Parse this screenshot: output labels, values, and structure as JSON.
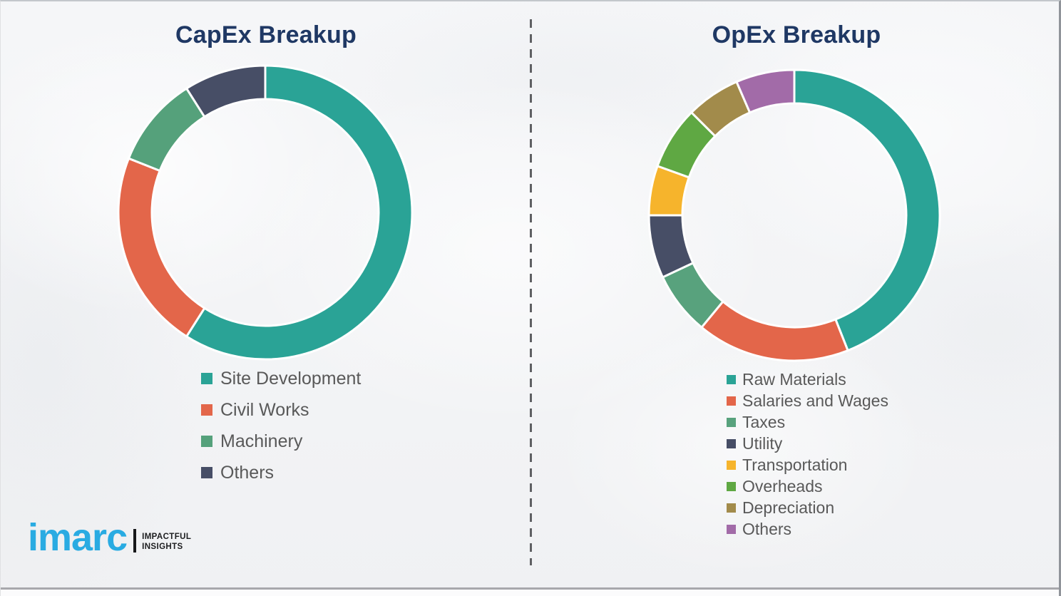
{
  "page": {
    "background_color": "#f4f5f7",
    "divider_color": "#5f6063",
    "title_color": "#1F3864",
    "legend_text_color": "#595959"
  },
  "branding": {
    "logo_text": "imarc",
    "logo_color": "#29ABE2",
    "tagline_line1": "IMPACTFUL",
    "tagline_line2": "INSIGHTS"
  },
  "chart_data": [
    {
      "type": "pie",
      "subtype": "donut",
      "title": "CapEx Breakup",
      "start_angle_deg": 0,
      "direction": "clockwise",
      "legend_position": "below-chart-left",
      "data_labels_shown": false,
      "values_note": "percent shares estimated from arc angles; no numeric labels shown in image",
      "categories": [
        "Site Development",
        "Civil Works",
        "Machinery",
        "Others"
      ],
      "values": [
        59,
        22,
        10,
        9
      ],
      "colors": [
        "#2AA396",
        "#E3664A",
        "#55A17B",
        "#474E66"
      ]
    },
    {
      "type": "pie",
      "subtype": "donut",
      "title": "OpEx Breakup",
      "start_angle_deg": 0,
      "direction": "clockwise",
      "legend_position": "below-chart-left",
      "data_labels_shown": false,
      "values_note": "percent shares estimated from arc angles; no numeric labels shown in image",
      "categories": [
        "Raw Materials",
        "Salaries and Wages",
        "Taxes",
        "Utility",
        "Transportation",
        "Overheads",
        "Depreciation",
        "Others"
      ],
      "values": [
        44,
        17,
        7,
        7,
        5.5,
        7,
        6,
        6.5
      ],
      "colors": [
        "#2AA396",
        "#E3664A",
        "#58A27D",
        "#474E66",
        "#F6B42C",
        "#5FA843",
        "#A28B4B",
        "#A26BA8"
      ]
    }
  ]
}
